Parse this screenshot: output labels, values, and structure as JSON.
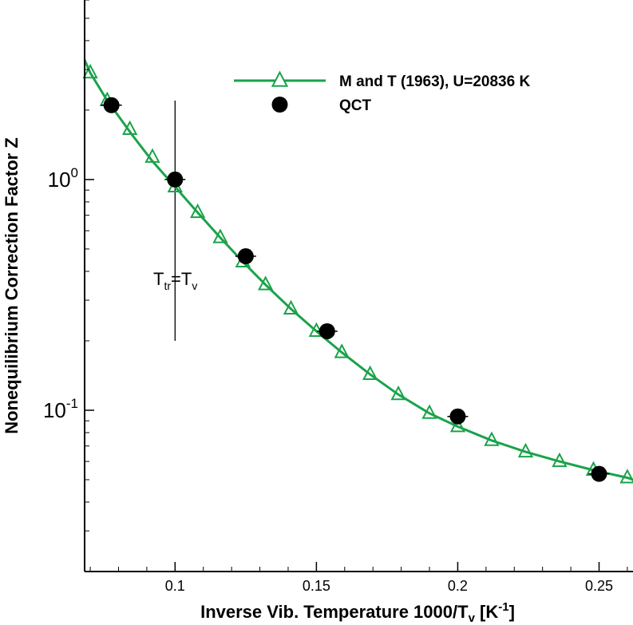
{
  "chart_data": {
    "type": "line",
    "scale": {
      "x": "linear",
      "y": "log"
    },
    "xlim": [
      0.068,
      0.262
    ],
    "ylim": [
      0.02,
      6.0
    ],
    "xlabel": {
      "main": "Inverse Vib. Temperature 1000/T",
      "main_sub": "v",
      "unit_open": " [K",
      "unit_sup": "-1",
      "unit_close": "]"
    },
    "ylabel": "Nonequilibrium Correction Factor Z",
    "x_ticks": [
      {
        "value": 0.1,
        "label": "0.1"
      },
      {
        "value": 0.15,
        "label": "0.15"
      },
      {
        "value": 0.2,
        "label": "0.2"
      },
      {
        "value": 0.25,
        "label": "0.25"
      }
    ],
    "y_ticks": [
      {
        "value": 0.1,
        "base": "10",
        "exp": "-1"
      },
      {
        "value": 1.0,
        "base": "10",
        "exp": "0"
      }
    ],
    "series": [
      {
        "name": "M and T (1963), U=20836 K",
        "color": "#1aa34a",
        "marker": "triangle-open",
        "line_x": [
          0.068,
          0.07,
          0.076,
          0.085,
          0.092,
          0.1,
          0.108,
          0.116,
          0.124,
          0.132,
          0.141,
          0.15,
          0.159,
          0.169,
          0.179,
          0.19,
          0.2,
          0.212,
          0.224,
          0.236,
          0.248,
          0.26,
          0.262
        ],
        "line_y": [
          3.3,
          2.9,
          2.2,
          1.55,
          1.2,
          0.93,
          0.72,
          0.56,
          0.44,
          0.35,
          0.275,
          0.22,
          0.178,
          0.143,
          0.117,
          0.097,
          0.085,
          0.074,
          0.066,
          0.06,
          0.055,
          0.051,
          0.05
        ],
        "marker_x": [
          0.07,
          0.076,
          0.084,
          0.092,
          0.1,
          0.108,
          0.116,
          0.124,
          0.132,
          0.141,
          0.15,
          0.159,
          0.169,
          0.179,
          0.19,
          0.2,
          0.212,
          0.224,
          0.236,
          0.248,
          0.26
        ],
        "marker_y": [
          2.9,
          2.2,
          1.65,
          1.25,
          0.93,
          0.72,
          0.56,
          0.44,
          0.35,
          0.275,
          0.22,
          0.178,
          0.143,
          0.117,
          0.097,
          0.085,
          0.074,
          0.066,
          0.06,
          0.055,
          0.051
        ]
      },
      {
        "name": "QCT",
        "color": "#000000",
        "marker": "circle-filled",
        "x": [
          0.0775,
          0.1,
          0.125,
          0.1538,
          0.2,
          0.25
        ],
        "y": [
          2.1,
          1.0,
          0.465,
          0.22,
          0.094,
          0.053
        ]
      }
    ],
    "annotations": [
      {
        "type": "vline",
        "x": 0.1,
        "y_from": 0.2,
        "y_to": 2.2
      },
      {
        "type": "text",
        "x": 0.1,
        "y": 0.38,
        "base": "T",
        "sub": "tr",
        "eq": "=T",
        "sub2": "v"
      }
    ],
    "legend": {
      "position": "top-right"
    }
  }
}
